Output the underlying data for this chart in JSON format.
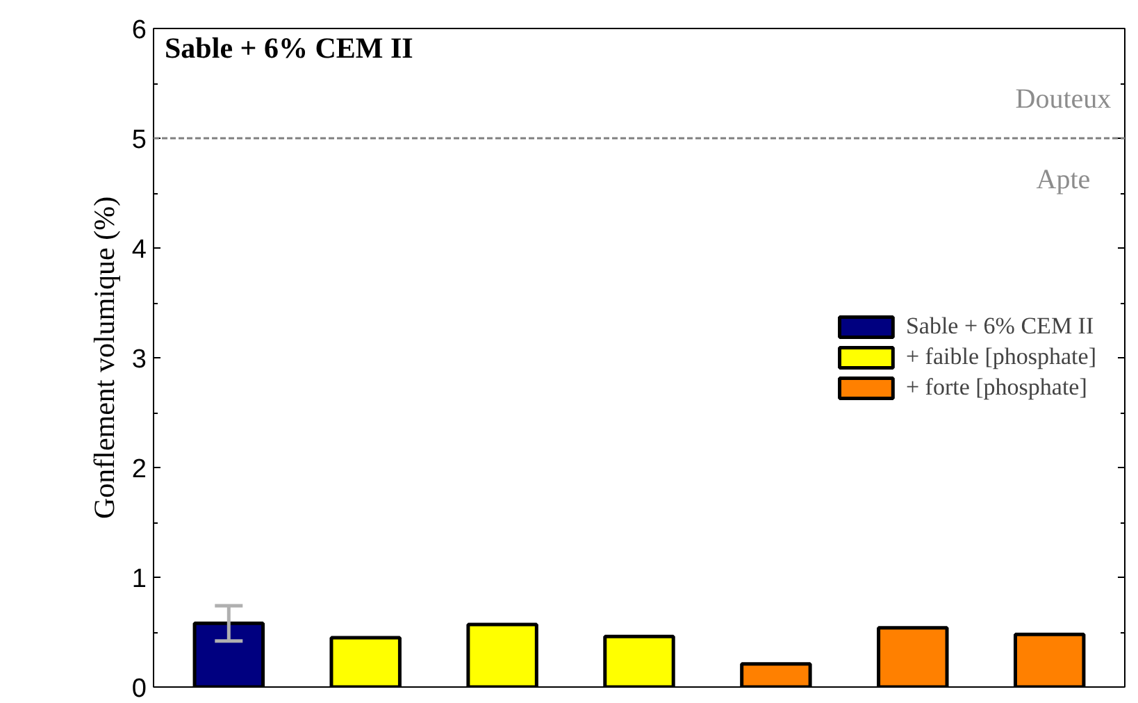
{
  "chart_data": {
    "type": "bar",
    "title": "Sable + 6% CEM II",
    "ylabel": "Gonflement volumique (%)",
    "categories": [
      null,
      null,
      null,
      null,
      null,
      null,
      null
    ],
    "series": [
      {
        "name": "Sable + 6% CEM II",
        "color": "#000080",
        "values": [
          0.58,
          null,
          null,
          null,
          null,
          null,
          null
        ],
        "errors": [
          0.16,
          null,
          null,
          null,
          null,
          null,
          null
        ]
      },
      {
        "name": "+ faible [phosphate]",
        "color": "#ffff00",
        "values": [
          null,
          0.45,
          0.57,
          0.46,
          null,
          null,
          null
        ]
      },
      {
        "name": "+ forte [phosphate]",
        "color": "#ff8000",
        "values": [
          null,
          null,
          null,
          null,
          0.21,
          0.54,
          0.48
        ]
      }
    ],
    "ylim": [
      0,
      6
    ],
    "yticks": [
      0,
      1,
      2,
      3,
      4,
      5,
      6
    ],
    "grid": false,
    "legend": "right",
    "tick_labels": "y",
    "ref_lines": [
      {
        "axis": "y",
        "value": 5,
        "color": "#808080",
        "line_style": "dashed"
      }
    ],
    "annotations": [
      "Douteux",
      "Apte"
    ]
  }
}
